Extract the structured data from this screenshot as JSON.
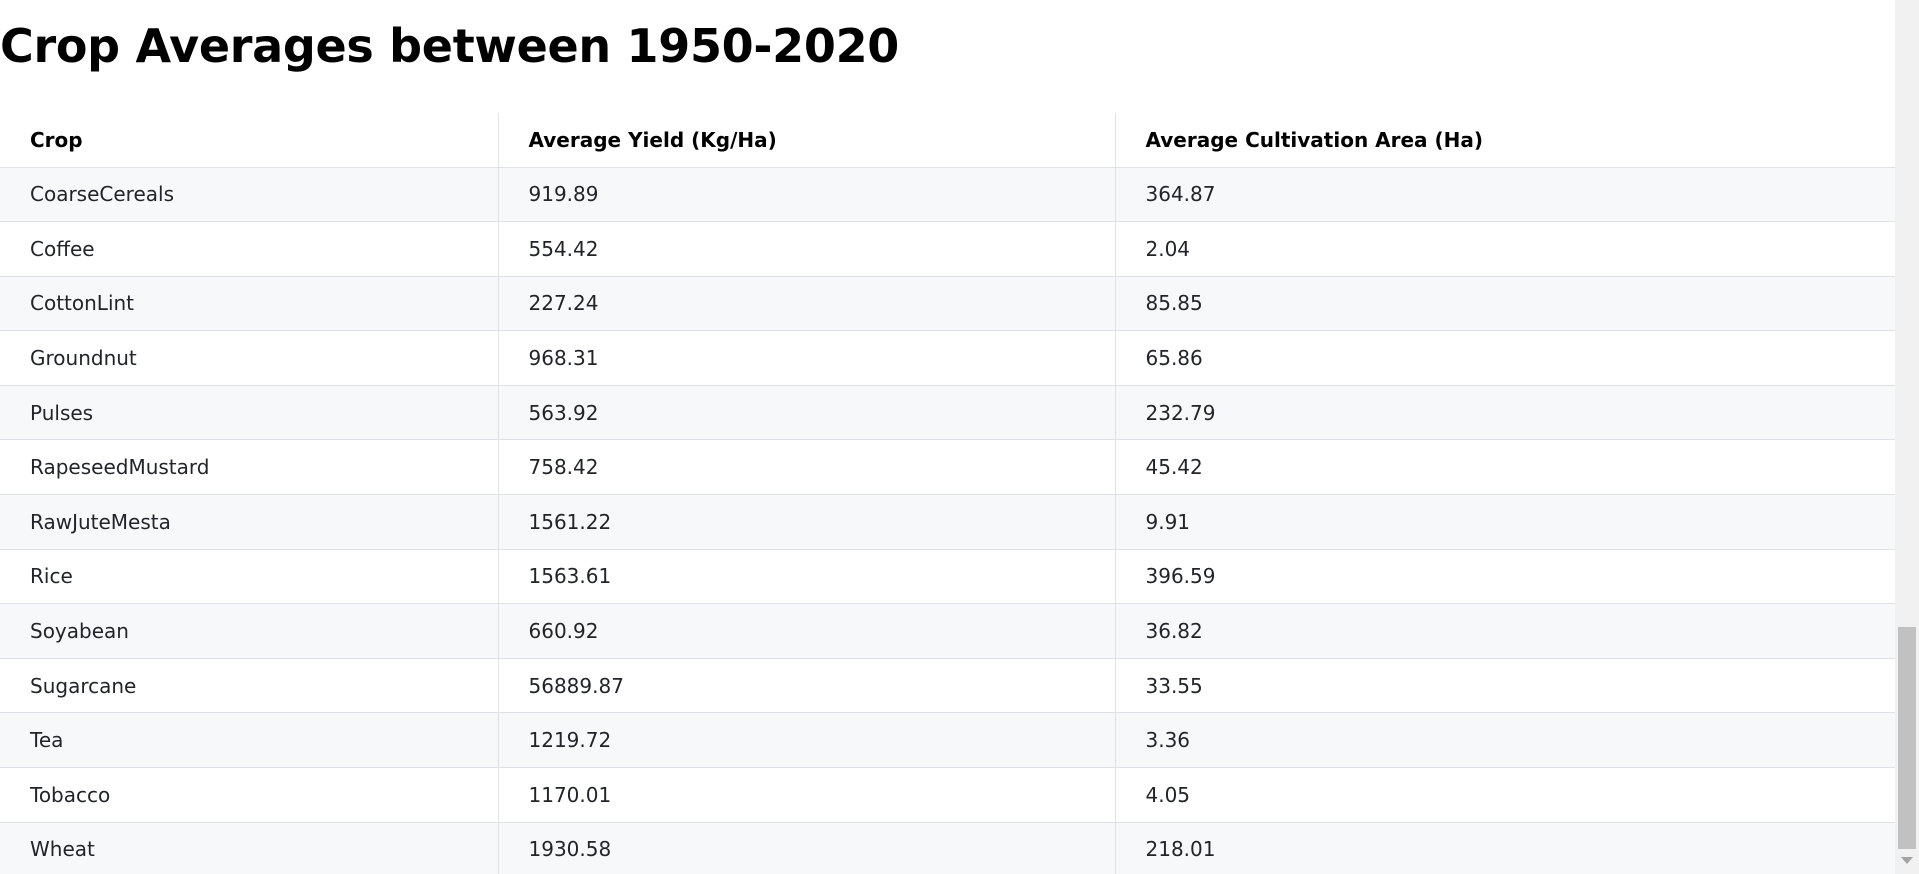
{
  "page": {
    "title": "Crop Averages between 1950-2020"
  },
  "table": {
    "headers": {
      "crop": "Crop",
      "yield": "Average Yield (Kg/Ha)",
      "area": "Average Cultivation Area (Ha)"
    },
    "rows": [
      {
        "crop": "CoarseCereals",
        "yield": "919.89",
        "area": "364.87"
      },
      {
        "crop": "Coffee",
        "yield": "554.42",
        "area": "2.04"
      },
      {
        "crop": "CottonLint",
        "yield": "227.24",
        "area": "85.85"
      },
      {
        "crop": "Groundnut",
        "yield": "968.31",
        "area": "65.86"
      },
      {
        "crop": "Pulses",
        "yield": "563.92",
        "area": "232.79"
      },
      {
        "crop": "RapeseedMustard",
        "yield": "758.42",
        "area": "45.42"
      },
      {
        "crop": "RawJuteMesta",
        "yield": "1561.22",
        "area": "9.91"
      },
      {
        "crop": "Rice",
        "yield": "1563.61",
        "area": "396.59"
      },
      {
        "crop": "Soyabean",
        "yield": "660.92",
        "area": "36.82"
      },
      {
        "crop": "Sugarcane",
        "yield": "56889.87",
        "area": "33.55"
      },
      {
        "crop": "Tea",
        "yield": "1219.72",
        "area": "3.36"
      },
      {
        "crop": "Tobacco",
        "yield": "1170.01",
        "area": "4.05"
      },
      {
        "crop": "Wheat",
        "yield": "1930.58",
        "area": "218.01"
      }
    ]
  },
  "colors": {
    "stripe": "#f7f8fa",
    "border": "#dee2e6",
    "scroll_thumb": "#c1c1c1"
  }
}
